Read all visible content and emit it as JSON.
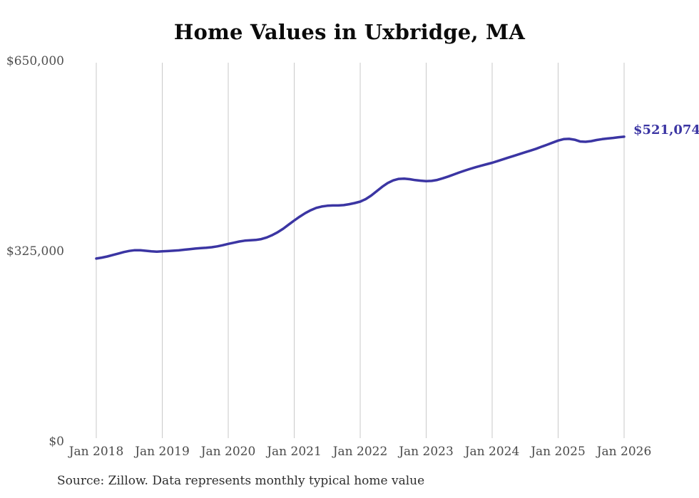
{
  "title": "Home Values in Uxbridge, MA",
  "annotation": {
    "label": "$521,074"
  },
  "source_note": "Source: Zillow. Data represents monthly typical home value",
  "colors": {
    "line": "#3b35a3",
    "annotation": "#3b35a3",
    "grid": "#c9c9c9",
    "title_text": "#0b0b0b",
    "axis_text": "#4a4a4a",
    "source_text": "#2e2e2e",
    "background": "#ffffff"
  },
  "y_axis": {
    "ticks": [
      {
        "label": "$650,000",
        "value": 650000
      },
      {
        "label": "$325,000",
        "value": 325000
      },
      {
        "label": "$0",
        "value": 0
      }
    ]
  },
  "x_axis": {
    "labels": [
      "Jan 2018",
      "Jan 2019",
      "Jan 2020",
      "Jan 2021",
      "Jan 2022",
      "Jan 2023",
      "Jan 2024",
      "Jan 2025",
      "Jan 2026"
    ]
  },
  "chart_data": {
    "type": "line",
    "title": "Home Values in Uxbridge, MA",
    "series_name": "Monthly typical home value",
    "x_start": "2018-01",
    "x_end": "2026-01",
    "x_interval": "monthly",
    "xlabel": "",
    "ylabel": "",
    "ylim": [
      0,
      650000
    ],
    "grid": "vertical-yearly",
    "legend": "none",
    "last_value": 521074,
    "last_value_label": "$521,074",
    "values": [
      313000,
      314500,
      316500,
      319000,
      321500,
      324000,
      326000,
      327200,
      327200,
      326200,
      325200,
      324800,
      325200,
      325700,
      326300,
      327000,
      328000,
      329000,
      330000,
      330700,
      331300,
      332300,
      333800,
      335700,
      338000,
      340000,
      342000,
      343500,
      344200,
      344700,
      346200,
      349000,
      353000,
      358000,
      364000,
      371000,
      378000,
      384500,
      390500,
      395500,
      399500,
      401800,
      403200,
      403600,
      403600,
      404200,
      405800,
      407800,
      410200,
      414500,
      420500,
      428000,
      435500,
      442000,
      446500,
      449000,
      449500,
      448500,
      447000,
      446000,
      445200,
      445600,
      447200,
      450000,
      453000,
      456500,
      460000,
      463200,
      466200,
      469000,
      471600,
      474100,
      476500,
      479500,
      482500,
      485500,
      488500,
      491500,
      494500,
      497500,
      500500,
      504000,
      507500,
      511000,
      514500,
      517000,
      517500,
      516000,
      513000,
      512500,
      513500,
      515500,
      517000,
      518000,
      519000,
      520200,
      521074
    ]
  }
}
